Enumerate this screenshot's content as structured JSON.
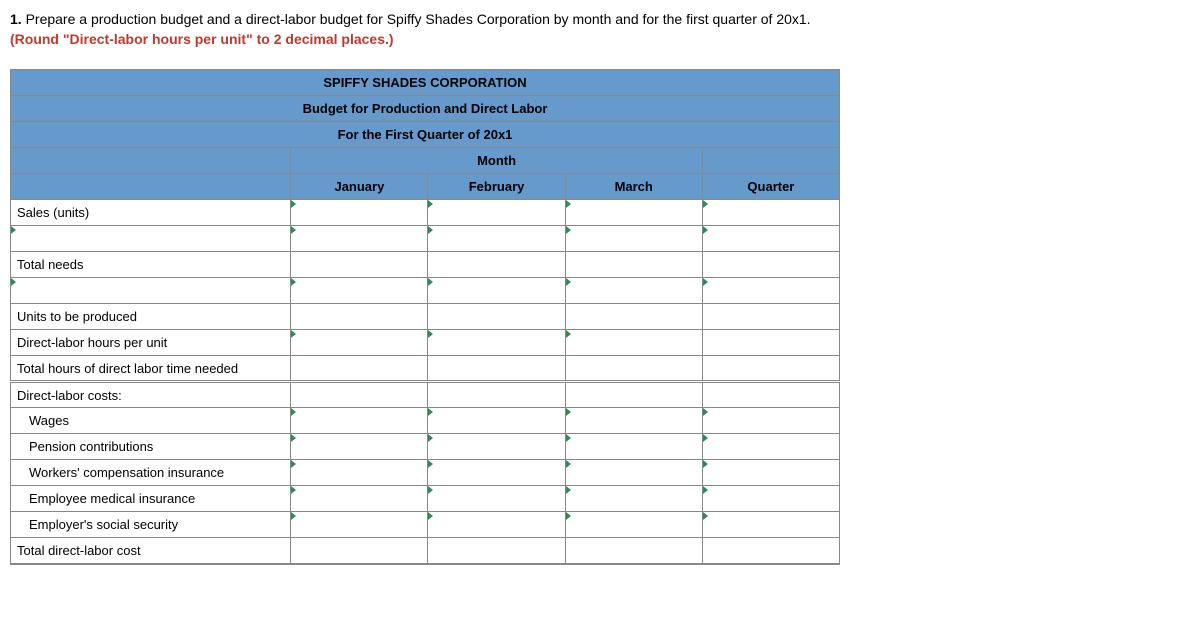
{
  "question": {
    "number": "1.",
    "text": "Prepare a production budget and a direct-labor budget for Spiffy Shades Corporation by month and for the first quarter of 20x1.",
    "instruction": "(Round \"Direct-labor hours per unit\" to 2 decimal places.)"
  },
  "table": {
    "header_accent": "#6699cc",
    "border_color": "#888888",
    "tick_color": "#2e8b57",
    "instruction_color": "#c0392b",
    "title1": "SPIFFY SHADES CORPORATION",
    "title2": "Budget for Production and Direct Labor",
    "title3": "For the First Quarter of 20x1",
    "month_header": "Month",
    "columns": [
      "January",
      "February",
      "March",
      "Quarter"
    ],
    "rows": [
      {
        "label": "Sales (units)",
        "indent": 0,
        "editable_label": false,
        "inputs": [
          true,
          true,
          true,
          true
        ],
        "ticks": [
          true,
          true,
          true,
          true
        ]
      },
      {
        "label": "",
        "indent": 0,
        "editable_label": true,
        "inputs": [
          true,
          true,
          true,
          true
        ],
        "ticks": [
          true,
          true,
          true,
          true
        ]
      },
      {
        "label": "Total needs",
        "indent": 0,
        "editable_label": false,
        "inputs": [
          false,
          false,
          false,
          false
        ],
        "ticks": [
          false,
          false,
          false,
          false
        ]
      },
      {
        "label": "",
        "indent": 0,
        "editable_label": true,
        "inputs": [
          true,
          true,
          true,
          true
        ],
        "ticks": [
          true,
          true,
          true,
          true
        ]
      },
      {
        "label": "Units to be produced",
        "indent": 0,
        "editable_label": false,
        "inputs": [
          false,
          false,
          false,
          false
        ],
        "ticks": [
          false,
          false,
          false,
          false
        ]
      },
      {
        "label": "Direct-labor hours per unit",
        "indent": 0,
        "editable_label": false,
        "inputs": [
          true,
          true,
          true,
          false
        ],
        "ticks": [
          true,
          true,
          true,
          false
        ]
      },
      {
        "label": "Total hours of direct labor time needed",
        "indent": 0,
        "editable_label": false,
        "inputs": [
          false,
          false,
          false,
          false
        ],
        "ticks": [
          false,
          false,
          false,
          false
        ]
      },
      {
        "label": "Direct-labor costs:",
        "indent": 0,
        "editable_label": false,
        "inputs": [
          false,
          false,
          false,
          false
        ],
        "ticks": [
          false,
          false,
          false,
          false
        ],
        "double_top": true
      },
      {
        "label": "Wages",
        "indent": 1,
        "editable_label": false,
        "inputs": [
          true,
          true,
          true,
          true
        ],
        "ticks": [
          true,
          true,
          true,
          true
        ]
      },
      {
        "label": "Pension contributions",
        "indent": 1,
        "editable_label": false,
        "inputs": [
          true,
          true,
          true,
          true
        ],
        "ticks": [
          true,
          true,
          true,
          true
        ]
      },
      {
        "label": "Workers' compensation insurance",
        "indent": 1,
        "editable_label": false,
        "inputs": [
          true,
          true,
          true,
          true
        ],
        "ticks": [
          true,
          true,
          true,
          true
        ]
      },
      {
        "label": "Employee medical insurance",
        "indent": 1,
        "editable_label": false,
        "inputs": [
          true,
          true,
          true,
          true
        ],
        "ticks": [
          true,
          true,
          true,
          true
        ]
      },
      {
        "label": "Employer's social security",
        "indent": 1,
        "editable_label": false,
        "inputs": [
          true,
          true,
          true,
          true
        ],
        "ticks": [
          true,
          true,
          true,
          true
        ]
      },
      {
        "label": "Total direct-labor cost",
        "indent": 0,
        "editable_label": false,
        "inputs": [
          false,
          false,
          false,
          false
        ],
        "ticks": [
          false,
          false,
          false,
          false
        ]
      }
    ]
  }
}
